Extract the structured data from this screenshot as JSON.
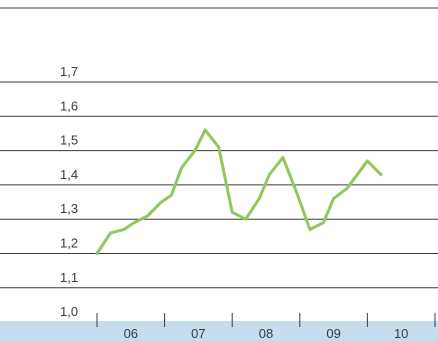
{
  "chart_data": {
    "type": "line",
    "title": "",
    "xlabel": "",
    "ylabel": "",
    "ylim": [
      0.95,
      1.7
    ],
    "y_ticks": [
      "1,7",
      "1,6",
      "1,5",
      "1,4",
      "1,3",
      "1,2",
      "1,1",
      "1,0"
    ],
    "y_tick_values": [
      1.7,
      1.6,
      1.5,
      1.4,
      1.3,
      1.2,
      1.1,
      1.0
    ],
    "categories": [
      "06",
      "07",
      "08",
      "09",
      "10"
    ],
    "grid": true,
    "legend": "none",
    "series": [
      {
        "color": "#95c55e",
        "x": [
          2005.75,
          2005.95,
          2006.15,
          2006.3,
          2006.5,
          2006.7,
          2006.85,
          2007.0,
          2007.2,
          2007.35,
          2007.55,
          2007.75,
          2007.95,
          2008.15,
          2008.3,
          2008.5,
          2008.7,
          2008.9,
          2009.1,
          2009.25,
          2009.45,
          2009.75,
          2009.95
        ],
        "values": [
          1.2,
          1.26,
          1.27,
          1.29,
          1.31,
          1.35,
          1.37,
          1.45,
          1.5,
          1.56,
          1.51,
          1.32,
          1.3,
          1.36,
          1.43,
          1.48,
          1.38,
          1.27,
          1.29,
          1.36,
          1.39,
          1.47,
          1.43
        ]
      }
    ]
  },
  "colors": {
    "axis_band": "#c6dcef",
    "grid": "#3a3a3a",
    "line": "#95c55e"
  }
}
